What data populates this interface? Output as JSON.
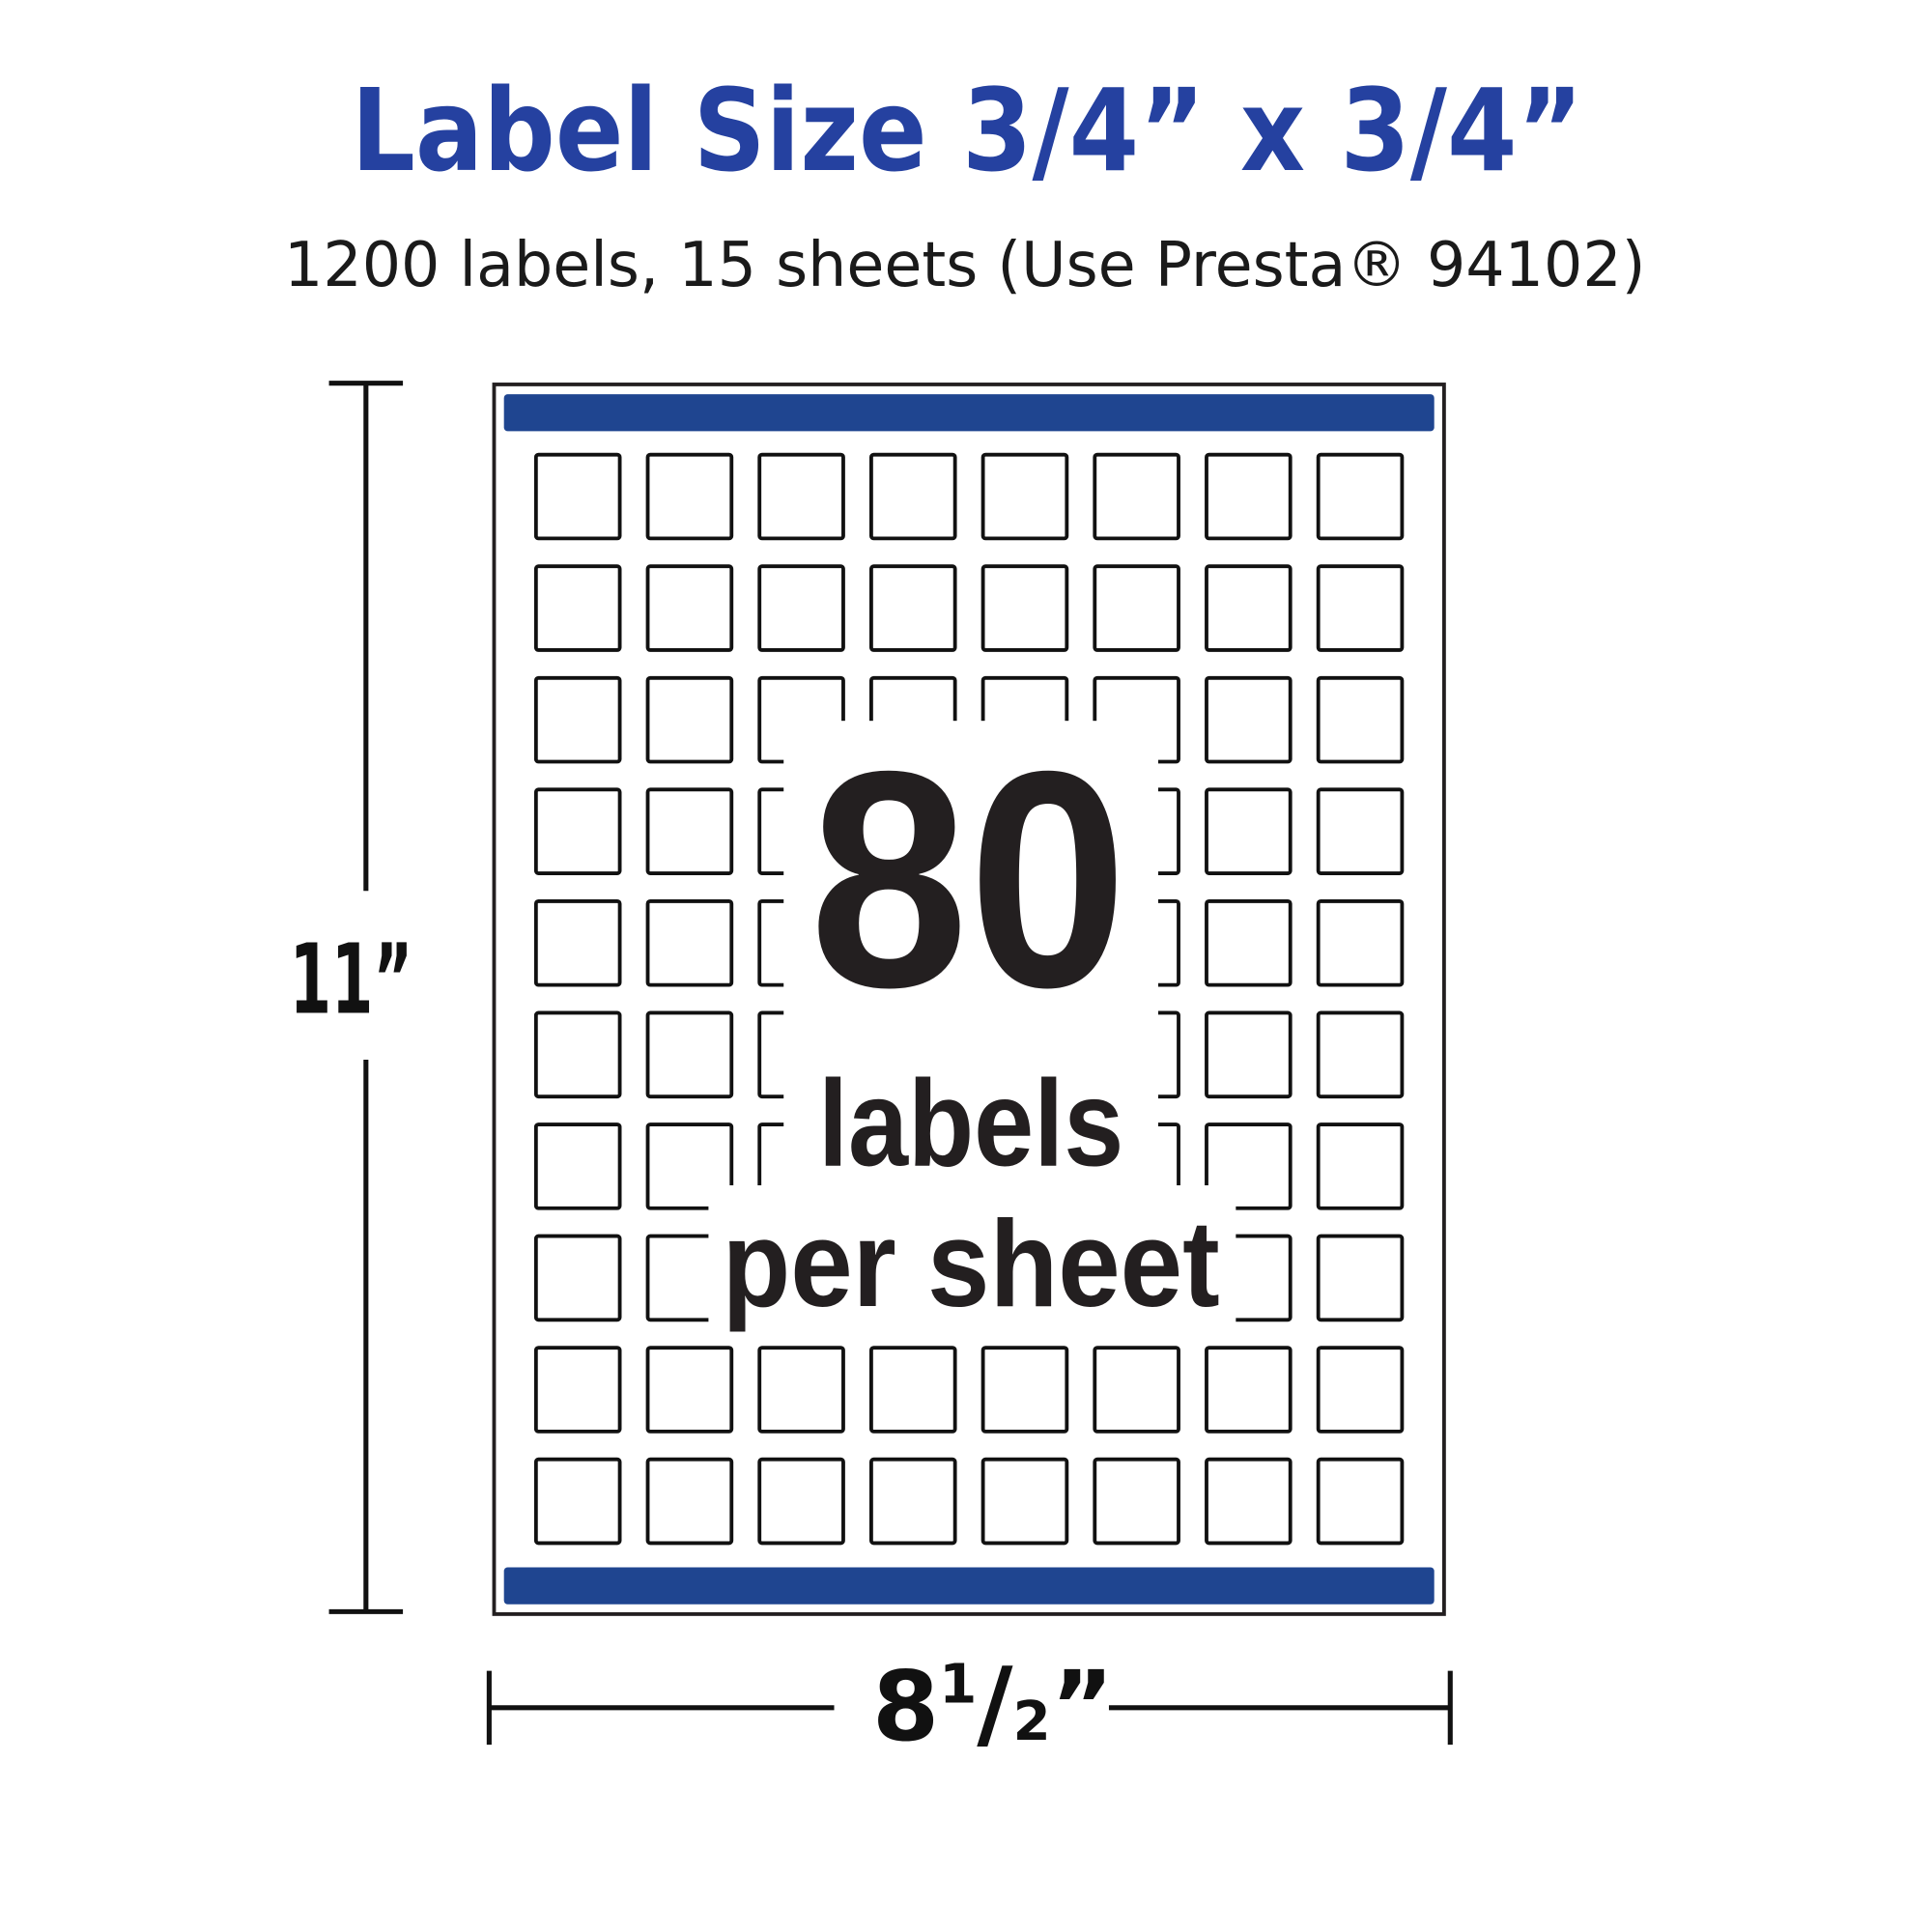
{
  "title": "Label Size 3/4” x 3/4”",
  "subtitle": "1200 labels, 15 sheets (Use Presta® 94102)",
  "sheet": {
    "columns": 8,
    "rows": 10,
    "count": "80",
    "count_line1": "labels",
    "count_line2": "per sheet",
    "bar_color": "#1f4590"
  },
  "dimensions": {
    "height": "11”",
    "width_whole": "8",
    "width_num": "1",
    "width_slash": "/",
    "width_den": "2",
    "width_quote": "”"
  },
  "colors": {
    "title": "#2541a0",
    "text": "#1a1a1a"
  }
}
